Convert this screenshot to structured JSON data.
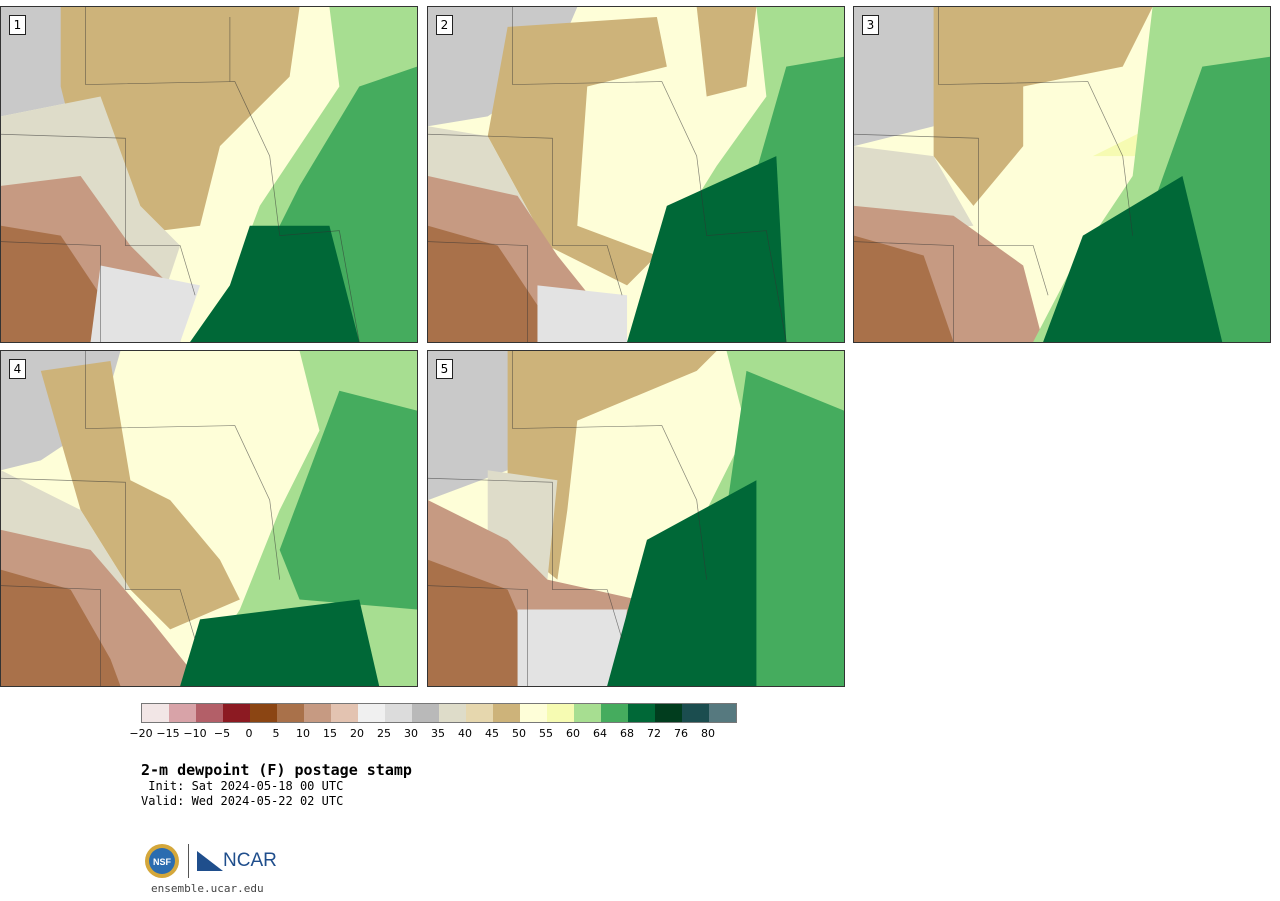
{
  "panels": [
    {
      "label": "1"
    },
    {
      "label": "2"
    },
    {
      "label": "3"
    },
    {
      "label": "4"
    },
    {
      "label": "5"
    }
  ],
  "colorbar": {
    "ticks": [
      "−20",
      "−15",
      "−10",
      "−5",
      "0",
      "5",
      "10",
      "15",
      "20",
      "25",
      "30",
      "35",
      "40",
      "45",
      "50",
      "55",
      "60",
      "64",
      "68",
      "72",
      "76",
      "80"
    ],
    "colors": [
      "#f2e6e6",
      "#d8a3a8",
      "#b35f68",
      "#8c1a22",
      "#8b4513",
      "#a9714a",
      "#c69a82",
      "#e3c3b1",
      "#f0f0f0",
      "#dcdcdc",
      "#b9b9b9",
      "#dedcc9",
      "#e6d7ae",
      "#cdb37a",
      "#fefed8",
      "#f6fbb2",
      "#a7de91",
      "#45ac5e",
      "#006837",
      "#013d1e",
      "#1b4d4f",
      "#56797f"
    ]
  },
  "legend": {
    "title": "2-m dewpoint (F) postage stamp",
    "init": " Init: Sat 2024-05-18 00 UTC",
    "valid": "Valid: Wed 2024-05-22 02 UTC"
  },
  "footer": {
    "nsf": "NSF",
    "ncar": "NCAR",
    "site": "ensemble.ucar.edu"
  }
}
